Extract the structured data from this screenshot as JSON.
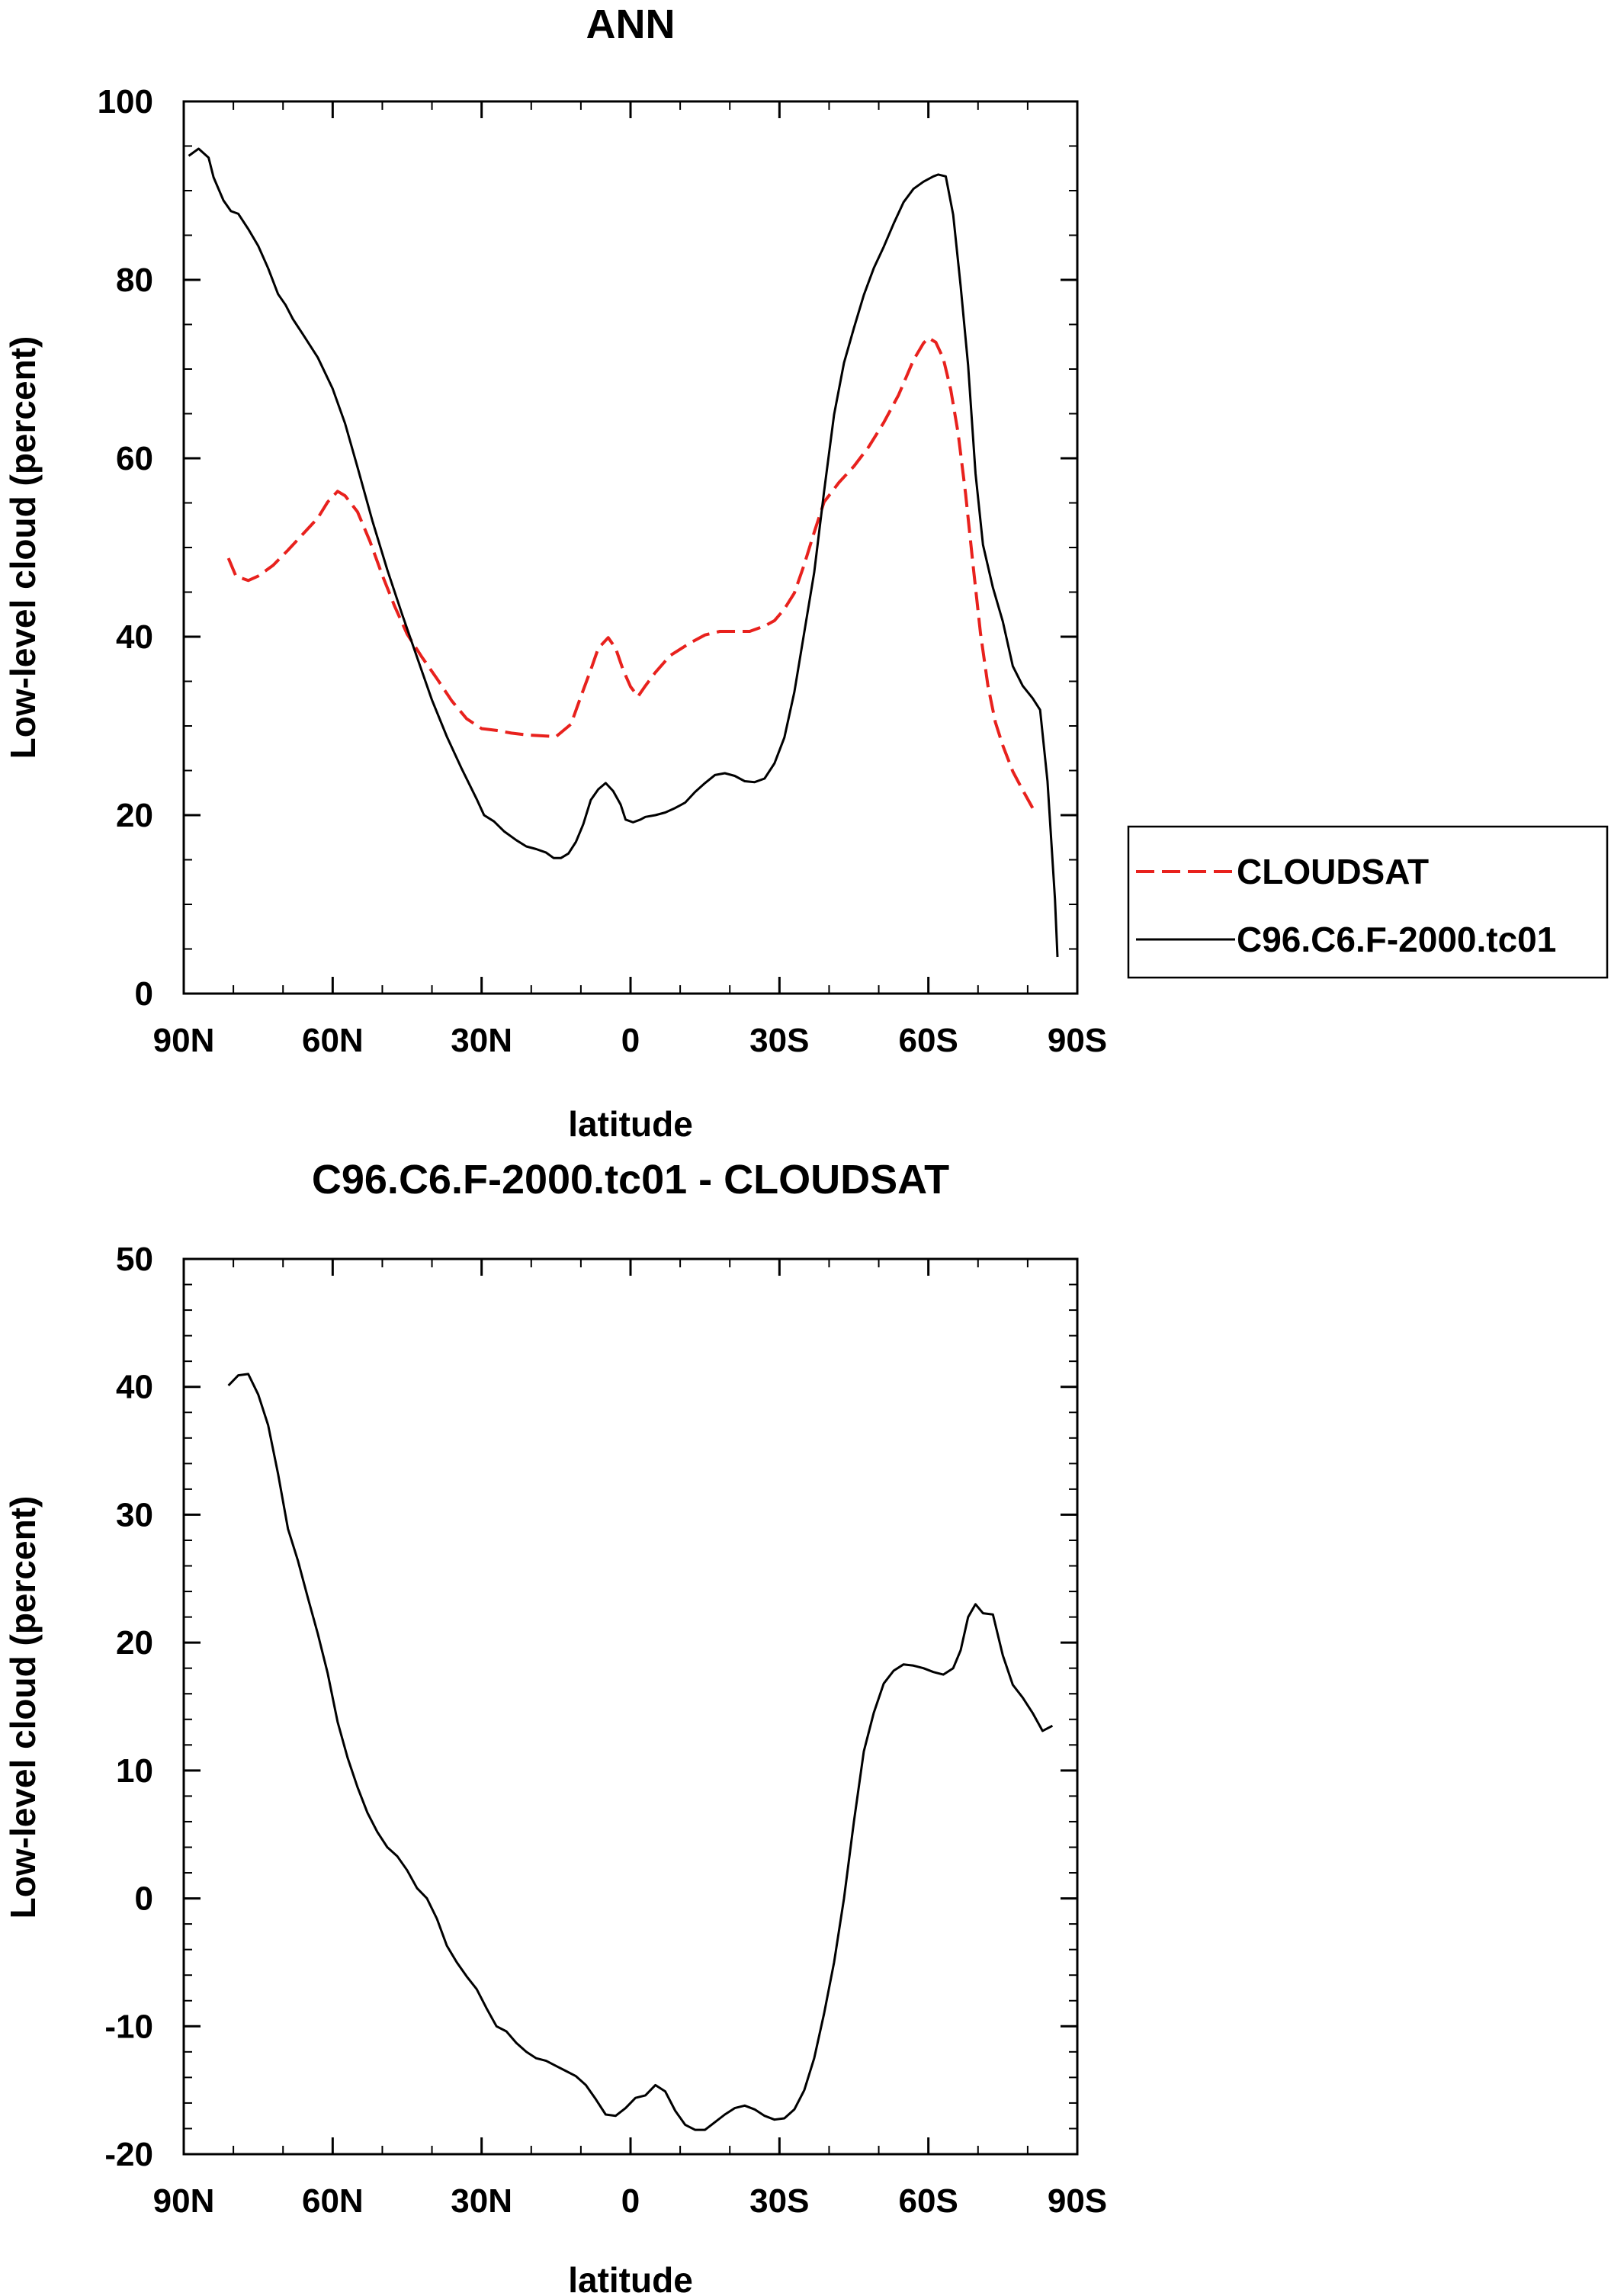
{
  "chart_data": [
    {
      "type": "line",
      "title": "ANN",
      "xlabel": "latitude",
      "ylabel": "Low-level cloud (percent)",
      "xlim": [
        -90,
        90
      ],
      "ylim": [
        0,
        100
      ],
      "xticks": [
        {
          "value": -90,
          "label": "90N"
        },
        {
          "value": -60,
          "label": "60N"
        },
        {
          "value": -30,
          "label": "30N"
        },
        {
          "value": 0,
          "label": "0"
        },
        {
          "value": 30,
          "label": "30S"
        },
        {
          "value": 60,
          "label": "60S"
        },
        {
          "value": 90,
          "label": "90S"
        }
      ],
      "yticks": [
        {
          "value": 0,
          "label": "0"
        },
        {
          "value": 20,
          "label": "20"
        },
        {
          "value": 40,
          "label": "40"
        },
        {
          "value": 60,
          "label": "60"
        },
        {
          "value": 80,
          "label": "80"
        },
        {
          "value": 100,
          "label": "100"
        }
      ],
      "legend": "right",
      "series": [
        {
          "name": "CLOUDSAT",
          "color": "#e8211d",
          "dash": "dashed",
          "points": [
            [
              -81,
              48.8
            ],
            [
              -79.5,
              46.8
            ],
            [
              -77,
              46.3
            ],
            [
              -75,
              46.8
            ],
            [
              -72,
              48.0
            ],
            [
              -69,
              49.7
            ],
            [
              -66,
              51.5
            ],
            [
              -63,
              53.3
            ],
            [
              -61,
              55.1
            ],
            [
              -59,
              56.3
            ],
            [
              -57.5,
              55.8
            ],
            [
              -55,
              54.0
            ],
            [
              -52.5,
              50.7
            ],
            [
              -50,
              46.9
            ],
            [
              -47.5,
              43.4
            ],
            [
              -45,
              40.3
            ],
            [
              -42,
              37.7
            ],
            [
              -39,
              35.3
            ],
            [
              -36,
              32.8
            ],
            [
              -33,
              30.8
            ],
            [
              -30,
              29.7
            ],
            [
              -27,
              29.5
            ],
            [
              -24,
              29.2
            ],
            [
              -21,
              29.0
            ],
            [
              -18,
              28.9
            ],
            [
              -15,
              28.8
            ],
            [
              -12,
              30.2
            ],
            [
              -10,
              33.3
            ],
            [
              -8,
              36.3
            ],
            [
              -6.5,
              38.7
            ],
            [
              -4.5,
              39.9
            ],
            [
              -3,
              38.7
            ],
            [
              -1.5,
              36.3
            ],
            [
              0,
              34.4
            ],
            [
              1.5,
              33.3
            ],
            [
              3,
              34.5
            ],
            [
              5,
              36.0
            ],
            [
              8,
              37.9
            ],
            [
              12,
              39.3
            ],
            [
              15,
              40.2
            ],
            [
              18,
              40.6
            ],
            [
              21,
              40.6
            ],
            [
              24,
              40.6
            ],
            [
              27,
              41.2
            ],
            [
              29,
              41.8
            ],
            [
              31,
              43.1
            ],
            [
              33,
              44.9
            ],
            [
              35,
              48.1
            ],
            [
              37,
              51.7
            ],
            [
              39,
              55.1
            ],
            [
              42,
              57.3
            ],
            [
              45,
              59.1
            ],
            [
              48,
              61.3
            ],
            [
              51,
              64.0
            ],
            [
              54,
              67.1
            ],
            [
              57,
              71.0
            ],
            [
              59,
              72.9
            ],
            [
              60,
              73.5
            ],
            [
              61.5,
              73.0
            ],
            [
              63,
              71.2
            ],
            [
              64.5,
              67.7
            ],
            [
              66,
              62.8
            ],
            [
              67.5,
              56.0
            ],
            [
              69,
              48.0
            ],
            [
              70.5,
              40.4
            ],
            [
              72,
              34.5
            ],
            [
              73.5,
              30.4
            ],
            [
              75,
              27.8
            ],
            [
              77,
              24.9
            ],
            [
              79,
              22.8
            ],
            [
              81,
              20.8
            ]
          ]
        },
        {
          "name": "C96.C6.F-2000.tc01",
          "color": "#000000",
          "dash": "solid",
          "points": [
            [
              -89,
              93.9
            ],
            [
              -87,
              94.7
            ],
            [
              -85,
              93.7
            ],
            [
              -84,
              91.5
            ],
            [
              -82,
              88.9
            ],
            [
              -80.5,
              87.7
            ],
            [
              -79,
              87.4
            ],
            [
              -77,
              85.7
            ],
            [
              -75,
              83.8
            ],
            [
              -73,
              81.3
            ],
            [
              -71,
              78.4
            ],
            [
              -69.5,
              77.2
            ],
            [
              -68,
              75.6
            ],
            [
              -66,
              73.9
            ],
            [
              -63,
              71.3
            ],
            [
              -60,
              67.8
            ],
            [
              -57.5,
              63.9
            ],
            [
              -55,
              59.0
            ],
            [
              -52,
              53.0
            ],
            [
              -49,
              47.5
            ],
            [
              -46,
              42.5
            ],
            [
              -43,
              37.7
            ],
            [
              -40,
              32.9
            ],
            [
              -37,
              28.8
            ],
            [
              -34,
              25.2
            ],
            [
              -31,
              21.8
            ],
            [
              -29.5,
              20.0
            ],
            [
              -27.5,
              19.3
            ],
            [
              -25.5,
              18.2
            ],
            [
              -23,
              17.2
            ],
            [
              -21,
              16.5
            ],
            [
              -19,
              16.2
            ],
            [
              -17,
              15.8
            ],
            [
              -15.5,
              15.2
            ],
            [
              -14,
              15.2
            ],
            [
              -12.5,
              15.7
            ],
            [
              -11,
              17.0
            ],
            [
              -9.5,
              19.0
            ],
            [
              -8,
              21.7
            ],
            [
              -6.5,
              22.9
            ],
            [
              -5,
              23.6
            ],
            [
              -3.5,
              22.7
            ],
            [
              -2,
              21.2
            ],
            [
              -1,
              19.5
            ],
            [
              0.5,
              19.2
            ],
            [
              2,
              19.5
            ],
            [
              3,
              19.8
            ],
            [
              5,
              20.0
            ],
            [
              7,
              20.3
            ],
            [
              9,
              20.8
            ],
            [
              11,
              21.4
            ],
            [
              13,
              22.6
            ],
            [
              15,
              23.6
            ],
            [
              17,
              24.5
            ],
            [
              19,
              24.7
            ],
            [
              21,
              24.4
            ],
            [
              23,
              23.8
            ],
            [
              25,
              23.7
            ],
            [
              27,
              24.1
            ],
            [
              29,
              25.8
            ],
            [
              31,
              28.7
            ],
            [
              33,
              33.8
            ],
            [
              35,
              40.5
            ],
            [
              37,
              47.2
            ],
            [
              39,
              56.3
            ],
            [
              41,
              64.9
            ],
            [
              43,
              70.7
            ],
            [
              45,
              74.6
            ],
            [
              47,
              78.3
            ],
            [
              49,
              81.3
            ],
            [
              51,
              83.7
            ],
            [
              53,
              86.3
            ],
            [
              55,
              88.7
            ],
            [
              57,
              90.2
            ],
            [
              59,
              91.0
            ],
            [
              61,
              91.6
            ],
            [
              62,
              91.8
            ],
            [
              63.5,
              91.6
            ],
            [
              65,
              87.3
            ],
            [
              66.5,
              79.3
            ],
            [
              68,
              70.4
            ],
            [
              69.5,
              58.3
            ],
            [
              71,
              50.3
            ],
            [
              73,
              45.5
            ],
            [
              75,
              41.7
            ],
            [
              77,
              36.7
            ],
            [
              79,
              34.5
            ],
            [
              81,
              33.1
            ],
            [
              82.5,
              31.8
            ],
            [
              84,
              23.8
            ],
            [
              85.5,
              10.6
            ],
            [
              86,
              4.1
            ]
          ]
        }
      ]
    },
    {
      "type": "line",
      "title": "C96.C6.F-2000.tc01 - CLOUDSAT",
      "xlabel": "latitude",
      "ylabel": "Low-level cloud (percent)",
      "xlim": [
        -90,
        90
      ],
      "ylim": [
        -20,
        50
      ],
      "xticks": [
        {
          "value": -90,
          "label": "90N"
        },
        {
          "value": -60,
          "label": "60N"
        },
        {
          "value": -30,
          "label": "30N"
        },
        {
          "value": 0,
          "label": "0"
        },
        {
          "value": 30,
          "label": "30S"
        },
        {
          "value": 60,
          "label": "60S"
        },
        {
          "value": 90,
          "label": "90S"
        }
      ],
      "yticks": [
        {
          "value": -20,
          "label": "-20"
        },
        {
          "value": -10,
          "label": "-10"
        },
        {
          "value": 0,
          "label": "0"
        },
        {
          "value": 10,
          "label": "10"
        },
        {
          "value": 20,
          "label": "20"
        },
        {
          "value": 30,
          "label": "30"
        },
        {
          "value": 40,
          "label": "40"
        },
        {
          "value": 50,
          "label": "50"
        }
      ],
      "series": [
        {
          "name": "C96.C6.F-2000.tc01 - CLOUDSAT",
          "color": "#000000",
          "dash": "solid",
          "points": [
            [
              -81,
              40.1
            ],
            [
              -79,
              40.9
            ],
            [
              -77,
              41.0
            ],
            [
              -75,
              39.4
            ],
            [
              -73,
              37.0
            ],
            [
              -71,
              33.2
            ],
            [
              -69,
              28.9
            ],
            [
              -67,
              26.4
            ],
            [
              -65,
              23.5
            ],
            [
              -63,
              20.7
            ],
            [
              -61,
              17.6
            ],
            [
              -59,
              13.8
            ],
            [
              -57,
              11.0
            ],
            [
              -55,
              8.7
            ],
            [
              -53,
              6.7
            ],
            [
              -51,
              5.2
            ],
            [
              -49,
              4.0
            ],
            [
              -47,
              3.3
            ],
            [
              -45,
              2.2
            ],
            [
              -43,
              0.8
            ],
            [
              -41,
              0.0
            ],
            [
              -39,
              -1.6
            ],
            [
              -37,
              -3.7
            ],
            [
              -35,
              -5.0
            ],
            [
              -33,
              -6.1
            ],
            [
              -31,
              -7.1
            ],
            [
              -29,
              -8.6
            ],
            [
              -27,
              -10.0
            ],
            [
              -25,
              -10.4
            ],
            [
              -23,
              -11.3
            ],
            [
              -21,
              -12.0
            ],
            [
              -19,
              -12.5
            ],
            [
              -17,
              -12.7
            ],
            [
              -15,
              -13.1
            ],
            [
              -13,
              -13.5
            ],
            [
              -11,
              -13.9
            ],
            [
              -9,
              -14.6
            ],
            [
              -7,
              -15.7
            ],
            [
              -5,
              -16.9
            ],
            [
              -3,
              -17.0
            ],
            [
              -1,
              -16.4
            ],
            [
              1,
              -15.6
            ],
            [
              3,
              -15.4
            ],
            [
              5,
              -14.6
            ],
            [
              7,
              -15.1
            ],
            [
              9,
              -16.6
            ],
            [
              11,
              -17.7
            ],
            [
              13,
              -18.1
            ],
            [
              15,
              -18.1
            ],
            [
              17,
              -17.5
            ],
            [
              19,
              -16.9
            ],
            [
              21,
              -16.4
            ],
            [
              23,
              -16.2
            ],
            [
              25,
              -16.5
            ],
            [
              27,
              -17.0
            ],
            [
              29,
              -17.3
            ],
            [
              31,
              -17.2
            ],
            [
              33,
              -16.5
            ],
            [
              35,
              -15.0
            ],
            [
              37,
              -12.5
            ],
            [
              39,
              -9.0
            ],
            [
              41,
              -5.0
            ],
            [
              43,
              0.0
            ],
            [
              45,
              6.0
            ],
            [
              47,
              11.5
            ],
            [
              49,
              14.5
            ],
            [
              51,
              16.8
            ],
            [
              53,
              17.8
            ],
            [
              55,
              18.3
            ],
            [
              57,
              18.2
            ],
            [
              59,
              18.0
            ],
            [
              61,
              17.7
            ],
            [
              63,
              17.5
            ],
            [
              65,
              18.0
            ],
            [
              66.5,
              19.4
            ],
            [
              68,
              22.0
            ],
            [
              69.5,
              23.0
            ],
            [
              71,
              22.3
            ],
            [
              73,
              22.2
            ],
            [
              75,
              19.0
            ],
            [
              77,
              16.7
            ],
            [
              79,
              15.7
            ],
            [
              81,
              14.5
            ],
            [
              83,
              13.1
            ],
            [
              85,
              13.5
            ]
          ]
        }
      ]
    }
  ]
}
